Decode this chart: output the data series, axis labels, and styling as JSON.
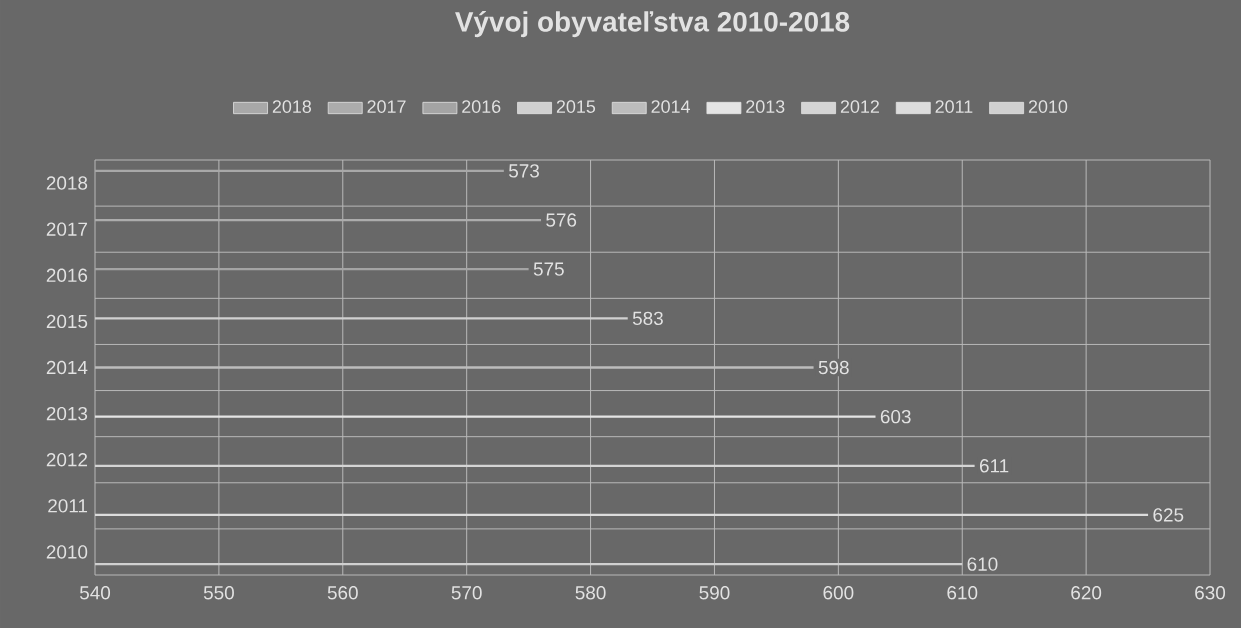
{
  "chart_data": {
    "type": "bar",
    "orientation": "horizontal",
    "title": "Vývoj obyvateľstva 2010-2018",
    "categories": [
      "2018",
      "2017",
      "2016",
      "2015",
      "2014",
      "2013",
      "2012",
      "2011",
      "2010"
    ],
    "series": [
      {
        "name": "2018",
        "color": "#a8a8a8",
        "values": [
          573,
          null,
          null,
          null,
          null,
          null,
          null,
          null,
          null
        ]
      },
      {
        "name": "2017",
        "color": "#acacac",
        "values": [
          null,
          576,
          null,
          null,
          null,
          null,
          null,
          null,
          null
        ]
      },
      {
        "name": "2016",
        "color": "#a4a4a4",
        "values": [
          null,
          null,
          575,
          null,
          null,
          null,
          null,
          null,
          null
        ]
      },
      {
        "name": "2015",
        "color": "#d0d0d0",
        "values": [
          null,
          null,
          null,
          583,
          null,
          null,
          null,
          null,
          null
        ]
      },
      {
        "name": "2014",
        "color": "#bcbcbc",
        "values": [
          null,
          null,
          null,
          null,
          598,
          null,
          null,
          null,
          null
        ]
      },
      {
        "name": "2013",
        "color": "#e4e4e4",
        "values": [
          null,
          null,
          null,
          null,
          null,
          603,
          null,
          null,
          null
        ]
      },
      {
        "name": "2012",
        "color": "#d4d4d4",
        "values": [
          null,
          null,
          null,
          null,
          null,
          null,
          611,
          null,
          null
        ]
      },
      {
        "name": "2011",
        "color": "#dcdcdc",
        "values": [
          null,
          null,
          null,
          null,
          null,
          null,
          null,
          625,
          null
        ]
      },
      {
        "name": "2010",
        "color": "#d0d0d0",
        "values": [
          null,
          null,
          null,
          null,
          null,
          null,
          null,
          null,
          610
        ]
      }
    ],
    "xlim": [
      540,
      630
    ],
    "xticks": [
      540,
      550,
      560,
      570,
      580,
      590,
      600,
      610,
      620,
      630
    ],
    "grid": true,
    "legend": "top",
    "data_labels": true
  }
}
